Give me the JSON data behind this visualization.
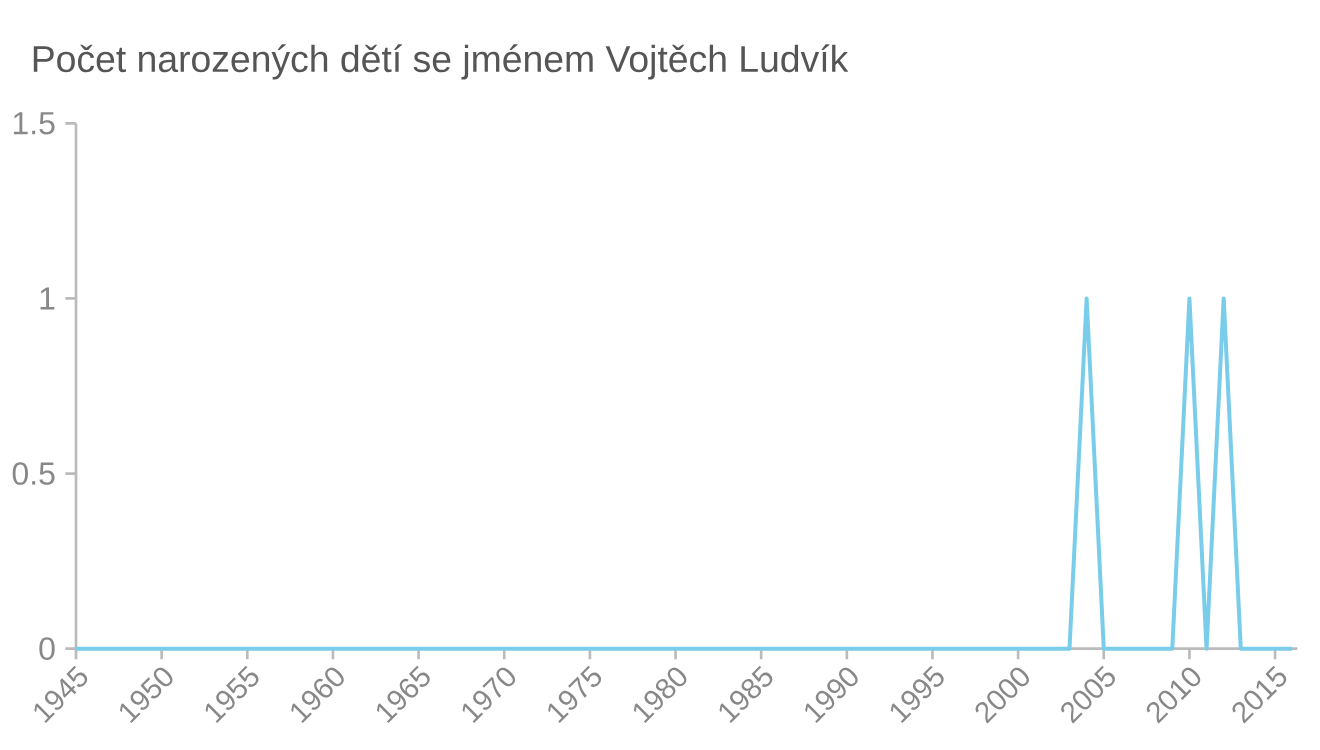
{
  "chart_data": {
    "type": "line",
    "title": "Počet narozených dětí se jménem Vojtěch Ludvík",
    "x": [
      1945,
      2003,
      2004,
      2005,
      2009,
      2010,
      2011,
      2012,
      2013,
      2016
    ],
    "series": [
      {
        "color": "#79cdea",
        "values": [
          0,
          0,
          1,
          0,
          0,
          1,
          0,
          1,
          0,
          0
        ]
      }
    ],
    "xlim": [
      1945,
      2016.3
    ],
    "ylim": [
      0,
      1.5
    ],
    "xticks": [
      1945,
      1950,
      1955,
      1960,
      1965,
      1970,
      1975,
      1980,
      1985,
      1990,
      1995,
      2000,
      2005,
      2010,
      2015
    ],
    "yticks": [
      0,
      0.5,
      1,
      1.5
    ],
    "grid": false,
    "marker": "none",
    "line_style": "solid"
  }
}
